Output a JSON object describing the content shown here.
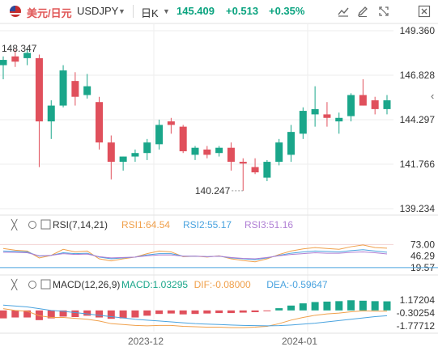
{
  "header": {
    "symbol_name": "美元/日元",
    "symbol_code": "USDJPY",
    "period": "日K",
    "price": "145.409",
    "change": "+0.513",
    "change_pct": "+0.35%",
    "tools": [
      "indicator-icon",
      "pencil-icon",
      "fullscreen-icon",
      "close-icon"
    ]
  },
  "colors": {
    "up": "#1aa68a",
    "down": "#e0505c",
    "grid": "#eeeeee",
    "text": "#333333"
  },
  "chart_data": {
    "type": "candlestick",
    "ylim": [
      139.234,
      149.36
    ],
    "y_ticks": [
      "149.360",
      "146.828",
      "144.297",
      "141.766",
      "139.234"
    ],
    "x_ticks": [
      "2023-12",
      "2024-01"
    ],
    "max_label": "148.347",
    "min_label": "140.247",
    "candles": [
      {
        "o": 147.4,
        "h": 147.9,
        "l": 146.6,
        "c": 147.7
      },
      {
        "o": 147.9,
        "h": 148.3,
        "l": 147.3,
        "c": 147.6
      },
      {
        "o": 147.8,
        "h": 148.35,
        "l": 147.4,
        "c": 148.1
      },
      {
        "o": 147.8,
        "h": 148.0,
        "l": 141.6,
        "c": 144.2
      },
      {
        "o": 144.2,
        "h": 145.4,
        "l": 143.2,
        "c": 145.1
      },
      {
        "o": 145.1,
        "h": 147.4,
        "l": 145.0,
        "c": 147.1
      },
      {
        "o": 146.5,
        "h": 147.0,
        "l": 145.1,
        "c": 145.6
      },
      {
        "o": 145.7,
        "h": 146.9,
        "l": 145.5,
        "c": 146.2
      },
      {
        "o": 145.3,
        "h": 145.6,
        "l": 142.6,
        "c": 143.0
      },
      {
        "o": 143.0,
        "h": 143.4,
        "l": 140.9,
        "c": 141.9
      },
      {
        "o": 141.9,
        "h": 142.2,
        "l": 141.4,
        "c": 142.2
      },
      {
        "o": 142.2,
        "h": 142.6,
        "l": 141.9,
        "c": 142.4
      },
      {
        "o": 142.4,
        "h": 143.2,
        "l": 142.0,
        "c": 143.0
      },
      {
        "o": 142.9,
        "h": 144.3,
        "l": 142.6,
        "c": 144.0
      },
      {
        "o": 144.2,
        "h": 144.4,
        "l": 143.5,
        "c": 144.0
      },
      {
        "o": 143.9,
        "h": 144.0,
        "l": 142.4,
        "c": 142.5
      },
      {
        "o": 142.3,
        "h": 142.8,
        "l": 142.0,
        "c": 142.7
      },
      {
        "o": 142.6,
        "h": 142.8,
        "l": 142.1,
        "c": 142.3
      },
      {
        "o": 142.4,
        "h": 142.8,
        "l": 142.2,
        "c": 142.7
      },
      {
        "o": 142.7,
        "h": 143.0,
        "l": 141.4,
        "c": 141.9
      },
      {
        "o": 141.9,
        "h": 142.1,
        "l": 140.25,
        "c": 141.8
      },
      {
        "o": 141.6,
        "h": 142.1,
        "l": 141.2,
        "c": 141.3
      },
      {
        "o": 141.0,
        "h": 142.0,
        "l": 140.8,
        "c": 141.9
      },
      {
        "o": 141.9,
        "h": 143.2,
        "l": 141.7,
        "c": 143.0
      },
      {
        "o": 142.3,
        "h": 144.0,
        "l": 141.9,
        "c": 143.6
      },
      {
        "o": 143.5,
        "h": 145.0,
        "l": 143.2,
        "c": 144.8
      },
      {
        "o": 144.6,
        "h": 146.2,
        "l": 143.9,
        "c": 144.9
      },
      {
        "o": 144.6,
        "h": 145.3,
        "l": 143.9,
        "c": 144.4
      },
      {
        "o": 144.2,
        "h": 144.7,
        "l": 143.5,
        "c": 144.4
      },
      {
        "o": 144.5,
        "h": 145.8,
        "l": 144.2,
        "c": 145.7
      },
      {
        "o": 145.7,
        "h": 146.6,
        "l": 145.1,
        "c": 145.1
      },
      {
        "o": 145.4,
        "h": 145.6,
        "l": 144.6,
        "c": 144.9
      },
      {
        "o": 144.9,
        "h": 145.7,
        "l": 144.6,
        "c": 145.4
      }
    ],
    "rsi": {
      "title": "RSI(7,14,21)",
      "labels": [
        "RSI1:64.54",
        "RSI2:55.17",
        "RSI3:51.16"
      ],
      "colors": [
        "#f0a04b",
        "#4aa3df",
        "#b07fd4"
      ],
      "ylim": [
        10,
        100
      ],
      "y_ticks": [
        "73.00",
        "46.29",
        "19.57"
      ],
      "rsi1": [
        64,
        60,
        58,
        42,
        48,
        62,
        56,
        58,
        40,
        35,
        40,
        44,
        52,
        58,
        56,
        45,
        46,
        44,
        47,
        40,
        36,
        33,
        40,
        50,
        58,
        63,
        66,
        64,
        62,
        68,
        72,
        66,
        64.54
      ],
      "rsi2": [
        58,
        57,
        56,
        46,
        48,
        54,
        52,
        53,
        44,
        40,
        42,
        44,
        49,
        52,
        52,
        46,
        46,
        45,
        46,
        42,
        40,
        38,
        42,
        48,
        53,
        56,
        58,
        57,
        56,
        59,
        61,
        58,
        55.17
      ],
      "rsi3": [
        55,
        55,
        54,
        47,
        48,
        52,
        50,
        51,
        45,
        42,
        43,
        44,
        47,
        49,
        49,
        46,
        46,
        45,
        46,
        43,
        41,
        40,
        43,
        47,
        50,
        52,
        54,
        53,
        53,
        55,
        56,
        54,
        51.16
      ]
    },
    "macd": {
      "title": "MACD(12,26,9)",
      "labels": [
        "MACD:1.03295",
        "DIF:-0.08000",
        "DEA:-0.59647"
      ],
      "colors": [
        "#1aa68a",
        "#f0a04b",
        "#4aa3df"
      ],
      "y_ticks": [
        "1.17204",
        "-0.30254",
        "-1.77712"
      ],
      "ylim": [
        -2.4,
        2.0
      ],
      "hist": [
        -0.9,
        -0.8,
        -0.8,
        -1.1,
        -0.9,
        -0.7,
        -0.75,
        -0.6,
        -0.8,
        -0.95,
        -0.9,
        -0.8,
        -0.6,
        -0.4,
        -0.35,
        -0.45,
        -0.4,
        -0.35,
        -0.3,
        -0.3,
        -0.25,
        -0.2,
        -0.05,
        0.25,
        0.55,
        0.8,
        0.95,
        1.0,
        1.05,
        1.15,
        1.1,
        1.05,
        1.03
      ],
      "dif": [
        0.2,
        0.0,
        -0.1,
        -0.6,
        -0.8,
        -0.8,
        -0.9,
        -1.0,
        -1.2,
        -1.5,
        -1.6,
        -1.7,
        -1.75,
        -1.7,
        -1.7,
        -1.8,
        -1.85,
        -1.9,
        -1.9,
        -1.95,
        -1.95,
        -1.9,
        -1.8,
        -1.5,
        -1.1,
        -0.8,
        -0.55,
        -0.4,
        -0.3,
        -0.15,
        -0.05,
        -0.08,
        -0.08
      ],
      "dea": [
        0.6,
        0.5,
        0.4,
        0.2,
        0.0,
        -0.1,
        -0.25,
        -0.4,
        -0.55,
        -0.7,
        -0.85,
        -1.0,
        -1.1,
        -1.2,
        -1.3,
        -1.4,
        -1.5,
        -1.55,
        -1.6,
        -1.65,
        -1.7,
        -1.72,
        -1.75,
        -1.72,
        -1.65,
        -1.55,
        -1.45,
        -1.3,
        -1.15,
        -1.0,
        -0.85,
        -0.7,
        -0.6
      ]
    }
  }
}
